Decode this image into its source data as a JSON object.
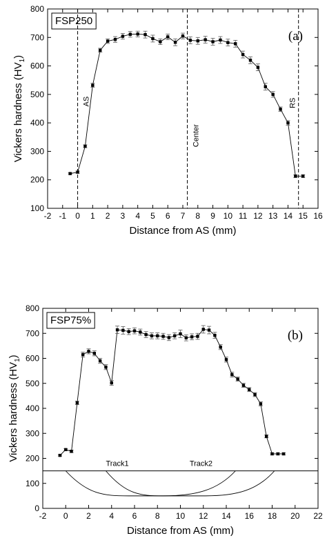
{
  "chart_data": [
    {
      "panel": "a",
      "type": "line",
      "panel_label": "(a)",
      "box_label": "FSP250",
      "xlabel": "Distance from AS (mm)",
      "ylabel_main": "Vickers hardness (HV",
      "ylabel_sub": "1",
      "ylabel_close": ")",
      "xlim": [
        -2,
        16
      ],
      "ylim": [
        100,
        800
      ],
      "xticks": [
        -2,
        -1,
        0,
        1,
        2,
        3,
        4,
        5,
        6,
        7,
        8,
        9,
        10,
        11,
        12,
        13,
        14,
        15,
        16
      ],
      "yticks": [
        100,
        200,
        300,
        400,
        500,
        600,
        700,
        800
      ],
      "grid": false,
      "series": [
        {
          "x": [
            -0.5,
            0,
            0.5,
            1,
            1.5,
            2,
            2.5,
            3,
            3.5,
            4,
            4.5,
            5,
            5.5,
            6,
            6.5,
            7,
            7.5,
            8,
            8.5,
            9,
            9.5,
            10,
            10.5,
            11,
            11.5,
            12,
            12.5,
            13,
            13.5,
            14,
            14.5,
            15
          ],
          "y": [
            222,
            227,
            318,
            532,
            655,
            687,
            693,
            704,
            711,
            712,
            710,
            696,
            685,
            702,
            683,
            705,
            690,
            688,
            692,
            685,
            691,
            682,
            678,
            640,
            620,
            595,
            527,
            500,
            448,
            400,
            213,
            213
          ],
          "err": [
            3,
            4,
            5,
            7,
            7,
            8,
            10,
            10,
            10,
            10,
            12,
            12,
            10,
            10,
            12,
            10,
            12,
            12,
            12,
            12,
            12,
            12,
            12,
            12,
            12,
            12,
            12,
            10,
            8,
            8,
            5,
            5
          ]
        }
      ],
      "vlines": [
        {
          "x": 0,
          "label": "AS",
          "label_y": 475
        },
        {
          "x": 7.3,
          "label": "Center",
          "label_y": 355
        },
        {
          "x": 14.7,
          "label": "RS",
          "label_y": 470
        }
      ]
    },
    {
      "panel": "b",
      "type": "line",
      "panel_label": "(b)",
      "box_label": "FSP75%",
      "xlabel": "Distance from AS (mm)",
      "ylabel_main": "Vickers hardness (HV",
      "ylabel_sub": "1",
      "ylabel_close": ")",
      "xlim": [
        -2,
        22
      ],
      "ylim": [
        0,
        800
      ],
      "xticks": [
        -2,
        0,
        2,
        4,
        6,
        8,
        10,
        12,
        14,
        16,
        18,
        20,
        22
      ],
      "yticks": [
        0,
        100,
        200,
        300,
        400,
        500,
        600,
        700,
        800
      ],
      "grid": false,
      "series": [
        {
          "x": [
            -0.5,
            0,
            0.5,
            1,
            1.5,
            2,
            2.5,
            3,
            3.5,
            4,
            4.5,
            5,
            5.5,
            6,
            6.5,
            7,
            7.5,
            8,
            8.5,
            9,
            9.5,
            10,
            10.5,
            11,
            11.5,
            12,
            12.5,
            13,
            13.5,
            14,
            14.5,
            15,
            15.5,
            16,
            16.5,
            17,
            17.5,
            18,
            18.5,
            19
          ],
          "y": [
            212,
            235,
            228,
            422,
            615,
            628,
            620,
            590,
            565,
            502,
            714,
            712,
            707,
            710,
            705,
            695,
            690,
            690,
            688,
            683,
            690,
            698,
            682,
            686,
            688,
            716,
            713,
            692,
            645,
            595,
            535,
            517,
            492,
            475,
            455,
            418,
            288,
            218,
            218,
            218
          ],
          "err": [
            3,
            4,
            5,
            7,
            10,
            10,
            10,
            10,
            10,
            10,
            15,
            15,
            12,
            12,
            12,
            12,
            12,
            12,
            12,
            12,
            12,
            15,
            12,
            12,
            12,
            15,
            15,
            12,
            10,
            10,
            10,
            8,
            8,
            8,
            8,
            8,
            6,
            4,
            4,
            4
          ]
        }
      ],
      "baseline": {
        "y": 150
      },
      "annotations": [
        {
          "text": "Track1",
          "x": 4.5,
          "y": 170
        },
        {
          "text": "Track2",
          "x": 11.8,
          "y": 170
        }
      ],
      "tracks": [
        {
          "name": "Track1",
          "x_start": 0,
          "x_end": 14.8,
          "y_bottom": 50,
          "flat_from": 5.5,
          "flat_to": 8.5
        },
        {
          "name": "Track2",
          "x_start": 3.5,
          "x_end": 18.2,
          "y_bottom": 50,
          "flat_from": 8.5,
          "flat_to": 12.2
        }
      ]
    }
  ]
}
